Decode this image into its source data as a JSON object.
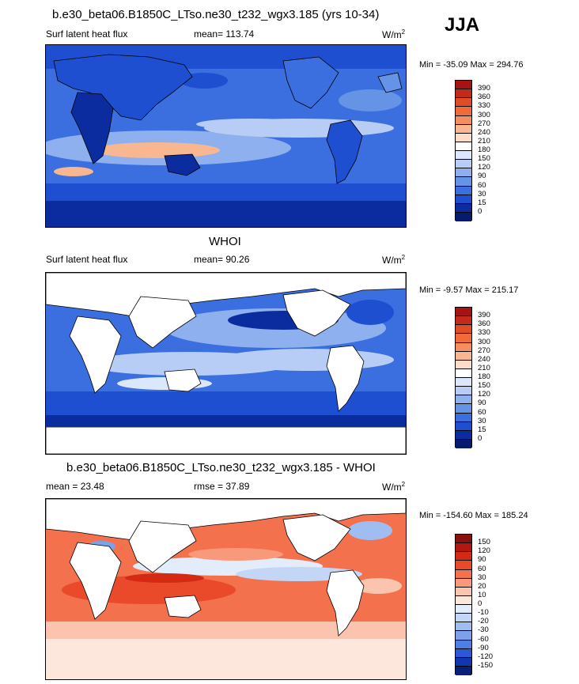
{
  "season": "JJA",
  "panels": [
    {
      "title": "b.e30_beta06.B1850C_LTso.ne30_t232_wgx3.185 (yrs 10-34)",
      "left_label": "Surf latent heat flux",
      "mid_label": "mean= 113.74",
      "units": "W/m",
      "units_sup": "2",
      "minmax": "Min = -35.09 Max = 294.76",
      "levels": [
        "390",
        "360",
        "330",
        "300",
        "270",
        "240",
        "210",
        "180",
        "150",
        "120",
        "90",
        "60",
        "30",
        "15",
        "0"
      ],
      "colors": [
        "#a51412",
        "#c42a1a",
        "#e04b28",
        "#f06a3a",
        "#f58d5e",
        "#f9b791",
        "#fcdcc6",
        "#ffffff",
        "#dbe7fb",
        "#b7cdf6",
        "#8fb0ef",
        "#6593e6",
        "#3b6fdf",
        "#1f4fd1",
        "#0a2c9e",
        "#071b6e"
      ]
    },
    {
      "title": "WHOI",
      "left_label": "Surf latent heat flux",
      "mid_label": "mean=  90.26",
      "units": "W/m",
      "units_sup": "2",
      "minmax": "Min =  -9.57 Max = 215.17",
      "levels": [
        "390",
        "360",
        "330",
        "300",
        "270",
        "240",
        "210",
        "180",
        "150",
        "120",
        "90",
        "60",
        "30",
        "15",
        "0"
      ],
      "colors": [
        "#a51412",
        "#c42a1a",
        "#e04b28",
        "#f06a3a",
        "#f58d5e",
        "#f9b791",
        "#fcdcc6",
        "#ffffff",
        "#dbe7fb",
        "#b7cdf6",
        "#8fb0ef",
        "#6593e6",
        "#3b6fdf",
        "#1f4fd1",
        "#0a2c9e",
        "#071b6e"
      ]
    },
    {
      "title": "b.e30_beta06.B1850C_LTso.ne30_t232_wgx3.185 - WHOI",
      "left_label": "mean =  23.48",
      "mid_label": "rmse =  37.89",
      "units": "W/m",
      "units_sup": "2",
      "minmax": "Min = -154.60 Max = 185.24",
      "levels": [
        "150",
        "120",
        "90",
        "60",
        "30",
        "20",
        "10",
        "0",
        "-10",
        "-20",
        "-30",
        "-60",
        "-90",
        "-120",
        "-150"
      ],
      "colors": [
        "#8a0f0f",
        "#b3170f",
        "#d42a14",
        "#ea4a2a",
        "#f3714d",
        "#f7997a",
        "#fbc4ae",
        "#fde6dc",
        "#e2ecfb",
        "#c3d6f6",
        "#9fbdf0",
        "#7aa1ea",
        "#4f7fe3",
        "#2a58d6",
        "#1235b0",
        "#0a1f7c"
      ]
    }
  ]
}
